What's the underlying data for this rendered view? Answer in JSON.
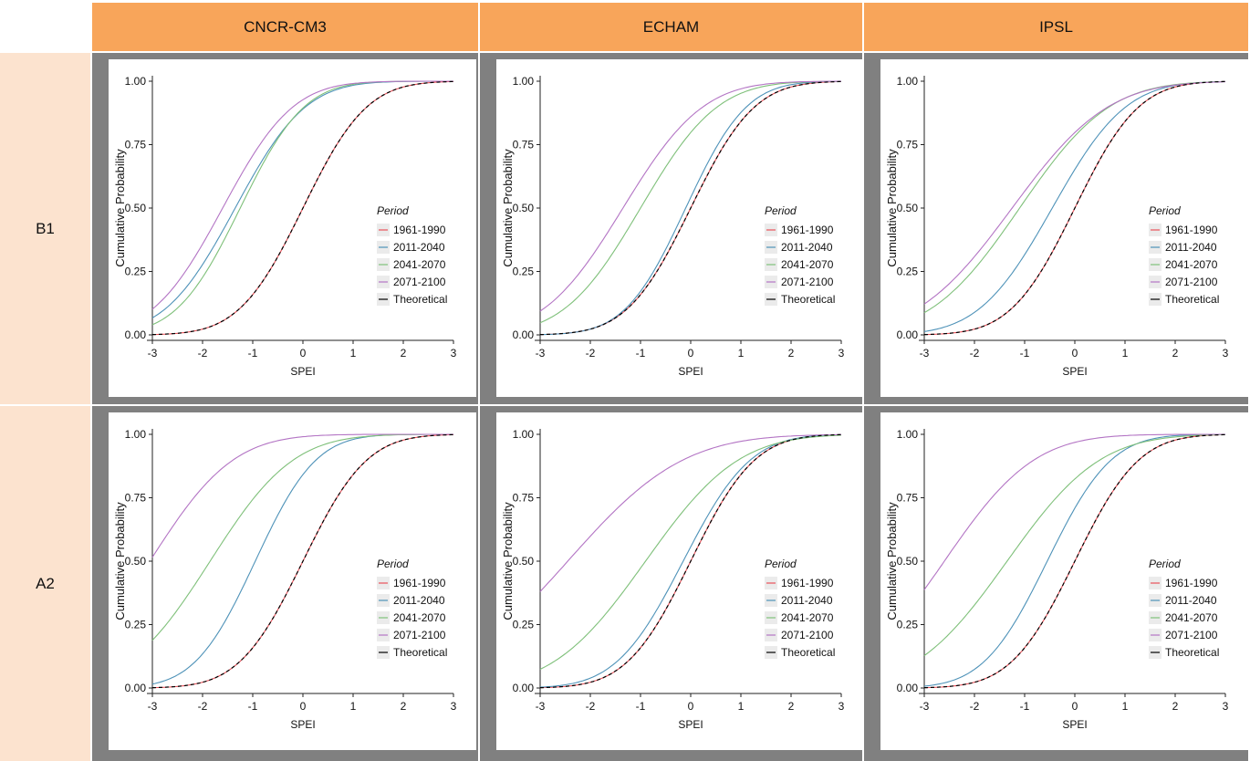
{
  "columns": [
    "CNCR-CM3",
    "ECHAM",
    "IPSL"
  ],
  "rows": [
    "B1",
    "A2"
  ],
  "colors": {
    "header": "#F8A55A",
    "row_label": "#FCE3CF",
    "panel_bg": "#808080",
    "p1961": "#E8525A",
    "p2011": "#4E92B8",
    "p2041": "#7FC07A",
    "p2071": "#B374C4",
    "theoretical": "#000000"
  },
  "chart_data": [
    {
      "type": "line",
      "column": "CNCR-CM3",
      "row": "B1",
      "xlabel": "SPEI",
      "ylabel": "Cumulative Probability",
      "xlim": [
        -3,
        3
      ],
      "ylim": [
        0,
        1
      ],
      "x_ticks": [
        "-3",
        "-2",
        "-1",
        "0",
        "1",
        "2",
        "3"
      ],
      "y_ticks": [
        "0.00",
        "0.25",
        "0.50",
        "0.75",
        "1.00"
      ],
      "legend_title": "Period",
      "legend": [
        "1961-1990",
        "2011-2040",
        "2041-2070",
        "2071-2100",
        "Theoretical"
      ],
      "series": [
        {
          "name": "1961-1990",
          "mu": 0.0,
          "sigma": 1.0,
          "y_at_minus3": 0.0
        },
        {
          "name": "2011-2040",
          "mu": -1.35,
          "sigma": 1.1,
          "y_at_minus3": 0.07
        },
        {
          "name": "2041-2070",
          "mu": -1.25,
          "sigma": 1.0,
          "y_at_minus3": 0.04
        },
        {
          "name": "2071-2100",
          "mu": -1.6,
          "sigma": 1.1,
          "y_at_minus3": 0.15
        },
        {
          "name": "Theoretical",
          "mu": 0.0,
          "sigma": 1.0,
          "y_at_minus3": 0.0
        }
      ]
    },
    {
      "type": "line",
      "column": "ECHAM",
      "row": "B1",
      "xlabel": "SPEI",
      "ylabel": "Cumulative Probability",
      "xlim": [
        -3,
        3
      ],
      "ylim": [
        0,
        1
      ],
      "x_ticks": [
        "-3",
        "-2",
        "-1",
        "0",
        "1",
        "2",
        "3"
      ],
      "y_ticks": [
        "0.00",
        "0.25",
        "0.50",
        "0.75",
        "1.00"
      ],
      "legend_title": "Period",
      "legend": [
        "1961-1990",
        "2011-2040",
        "2041-2070",
        "2071-2100",
        "Theoretical"
      ],
      "series": [
        {
          "name": "1961-1990",
          "mu": 0.0,
          "sigma": 1.0,
          "y_at_minus3": 0.0
        },
        {
          "name": "2011-2040",
          "mu": -0.1,
          "sigma": 0.95,
          "y_at_minus3": 0.02
        },
        {
          "name": "2041-2070",
          "mu": -1.0,
          "sigma": 1.2,
          "y_at_minus3": 0.11
        },
        {
          "name": "2071-2100",
          "mu": -1.35,
          "sigma": 1.25,
          "y_at_minus3": 0.19
        },
        {
          "name": "Theoretical",
          "mu": 0.0,
          "sigma": 1.0,
          "y_at_minus3": 0.0
        }
      ]
    },
    {
      "type": "line",
      "column": "IPSL",
      "row": "B1",
      "xlabel": "SPEI",
      "ylabel": "Cumulative Probability",
      "xlim": [
        -3,
        3
      ],
      "ylim": [
        0,
        1
      ],
      "x_ticks": [
        "-3",
        "-2",
        "-1",
        "0",
        "1",
        "2",
        "3"
      ],
      "y_ticks": [
        "0.00",
        "0.25",
        "0.50",
        "0.75",
        "1.00"
      ],
      "legend_title": "Period",
      "legend": [
        "1961-1990",
        "2011-2040",
        "2041-2070",
        "2071-2100",
        "Theoretical"
      ],
      "series": [
        {
          "name": "1961-1990",
          "mu": 0.0,
          "sigma": 1.0,
          "y_at_minus3": 0.0
        },
        {
          "name": "2011-2040",
          "mu": -0.45,
          "sigma": 1.15,
          "y_at_minus3": 0.02
        },
        {
          "name": "2041-2070",
          "mu": -1.1,
          "sigma": 1.4,
          "y_at_minus3": 0.1
        },
        {
          "name": "2071-2100",
          "mu": -1.25,
          "sigma": 1.5,
          "y_at_minus3": 0.16
        },
        {
          "name": "Theoretical",
          "mu": 0.0,
          "sigma": 1.0,
          "y_at_minus3": 0.0
        }
      ]
    },
    {
      "type": "line",
      "column": "CNCR-CM3",
      "row": "A2",
      "xlabel": "SPEI",
      "ylabel": "Cumulative Probability",
      "xlim": [
        -3,
        3
      ],
      "ylim": [
        0,
        1
      ],
      "x_ticks": [
        "-3",
        "-2",
        "-1",
        "0",
        "1",
        "2",
        "3"
      ],
      "y_ticks": [
        "0.00",
        "0.25",
        "0.50",
        "0.75",
        "1.00"
      ],
      "legend_title": "Period",
      "legend": [
        "1961-1990",
        "2011-2040",
        "2041-2070",
        "2071-2100",
        "Theoretical"
      ],
      "series": [
        {
          "name": "1961-1990",
          "mu": 0.0,
          "sigma": 1.0,
          "y_at_minus3": 0.0
        },
        {
          "name": "2011-2040",
          "mu": -0.95,
          "sigma": 0.95,
          "y_at_minus3": 0.02
        },
        {
          "name": "2041-2070",
          "mu": -1.85,
          "sigma": 1.3,
          "y_at_minus3": 0.19
        },
        {
          "name": "2071-2100",
          "mu": -3.05,
          "sigma": 1.3,
          "y_at_minus3": 0.52
        },
        {
          "name": "Theoretical",
          "mu": 0.0,
          "sigma": 1.0,
          "y_at_minus3": 0.0
        }
      ]
    },
    {
      "type": "line",
      "column": "ECHAM",
      "row": "A2",
      "xlabel": "SPEI",
      "ylabel": "Cumulative Probability",
      "xlim": [
        -3,
        3
      ],
      "ylim": [
        0,
        1
      ],
      "x_ticks": [
        "-3",
        "-2",
        "-1",
        "0",
        "1",
        "2",
        "3"
      ],
      "y_ticks": [
        "0.00",
        "0.25",
        "0.50",
        "0.75",
        "1.00"
      ],
      "legend_title": "Period",
      "legend": [
        "1961-1990",
        "2011-2040",
        "2041-2070",
        "2071-2100",
        "Theoretical"
      ],
      "series": [
        {
          "name": "1961-1990",
          "mu": 0.0,
          "sigma": 1.0,
          "y_at_minus3": 0.0
        },
        {
          "name": "2011-2040",
          "mu": -0.15,
          "sigma": 1.05,
          "y_at_minus3": 0.01
        },
        {
          "name": "2041-2070",
          "mu": -0.9,
          "sigma": 1.45,
          "y_at_minus3": 0.16
        },
        {
          "name": "2071-2100",
          "mu": -2.45,
          "sigma": 1.8,
          "y_at_minus3": 0.38
        },
        {
          "name": "Theoretical",
          "mu": 0.0,
          "sigma": 1.0,
          "y_at_minus3": 0.0
        }
      ]
    },
    {
      "type": "line",
      "column": "IPSL",
      "row": "A2",
      "xlabel": "SPEI",
      "ylabel": "Cumulative Probability",
      "xlim": [
        -3,
        3
      ],
      "ylim": [
        0,
        1
      ],
      "x_ticks": [
        "-3",
        "-2",
        "-1",
        "0",
        "1",
        "2",
        "3"
      ],
      "y_ticks": [
        "0.00",
        "0.25",
        "0.50",
        "0.75",
        "1.00"
      ],
      "legend_title": "Period",
      "legend": [
        "1961-1990",
        "2011-2040",
        "2041-2070",
        "2071-2100",
        "Theoretical"
      ],
      "series": [
        {
          "name": "1961-1990",
          "mu": 0.0,
          "sigma": 1.0,
          "y_at_minus3": 0.0
        },
        {
          "name": "2011-2040",
          "mu": -0.55,
          "sigma": 1.0,
          "y_at_minus3": 0.03
        },
        {
          "name": "2041-2070",
          "mu": -1.35,
          "sigma": 1.45,
          "y_at_minus3": 0.12
        },
        {
          "name": "2071-2100",
          "mu": -2.6,
          "sigma": 1.4,
          "y_at_minus3": 0.43
        },
        {
          "name": "Theoretical",
          "mu": 0.0,
          "sigma": 1.0,
          "y_at_minus3": 0.0
        }
      ]
    }
  ]
}
